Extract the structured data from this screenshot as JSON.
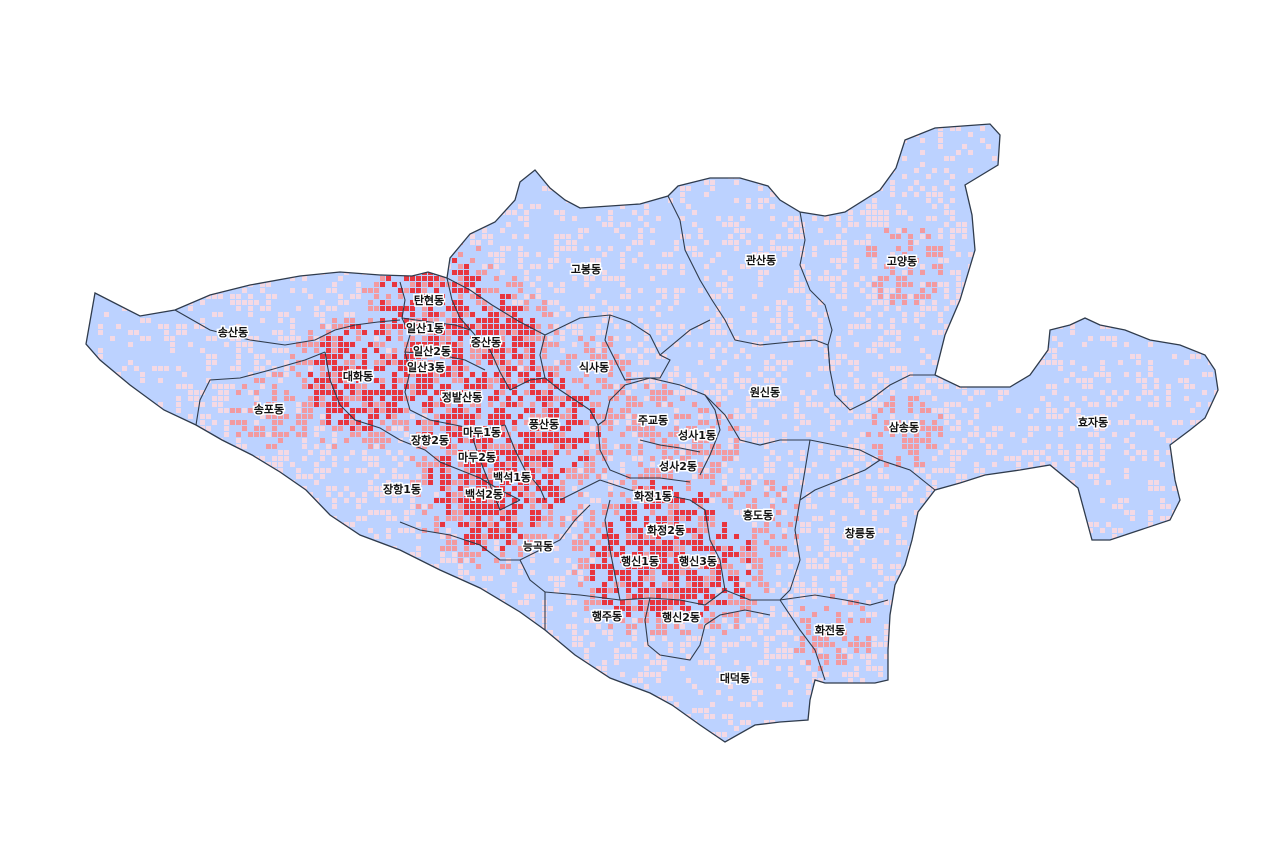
{
  "map": {
    "colors": {
      "land": "#bcd2ff",
      "outline": "#2f3b4c",
      "boundary": "#2f3b4c",
      "density_low": "#f4d9e4",
      "density_mid": "#f29aa0",
      "density_high": "#e8363f"
    },
    "labels": [
      {
        "name": "고봉동",
        "tier": "low"
      },
      {
        "name": "관산동",
        "tier": "low"
      },
      {
        "name": "고양동",
        "tier": "mid"
      },
      {
        "name": "송산동",
        "tier": "low"
      },
      {
        "name": "탄현동",
        "tier": "high"
      },
      {
        "name": "일산1동",
        "tier": "high"
      },
      {
        "name": "일산2동",
        "tier": "high"
      },
      {
        "name": "일산3동",
        "tier": "high"
      },
      {
        "name": "중산동",
        "tier": "high"
      },
      {
        "name": "대화동",
        "tier": "high"
      },
      {
        "name": "송포동",
        "tier": "mid"
      },
      {
        "name": "식사동",
        "tier": "mid"
      },
      {
        "name": "정발산동",
        "tier": "high"
      },
      {
        "name": "원신동",
        "tier": "low"
      },
      {
        "name": "풍산동",
        "tier": "high"
      },
      {
        "name": "주교동",
        "tier": "mid"
      },
      {
        "name": "성사1동",
        "tier": "mid"
      },
      {
        "name": "마두1동",
        "tier": "high"
      },
      {
        "name": "장항2동",
        "tier": "low"
      },
      {
        "name": "삼송동",
        "tier": "mid"
      },
      {
        "name": "효자동",
        "tier": "low"
      },
      {
        "name": "마두2동",
        "tier": "high"
      },
      {
        "name": "성사2동",
        "tier": "mid"
      },
      {
        "name": "백석1동",
        "tier": "high"
      },
      {
        "name": "장항1동",
        "tier": "low"
      },
      {
        "name": "백석2동",
        "tier": "high"
      },
      {
        "name": "화정1동",
        "tier": "mid"
      },
      {
        "name": "흥도동",
        "tier": "mid"
      },
      {
        "name": "화정2동",
        "tier": "high"
      },
      {
        "name": "창릉동",
        "tier": "low"
      },
      {
        "name": "능곡동",
        "tier": "low"
      },
      {
        "name": "행신1동",
        "tier": "high"
      },
      {
        "name": "행신3동",
        "tier": "high"
      },
      {
        "name": "행주동",
        "tier": "low"
      },
      {
        "name": "행신2동",
        "tier": "low"
      },
      {
        "name": "화전동",
        "tier": "mid"
      },
      {
        "name": "대덕동",
        "tier": "low"
      }
    ]
  }
}
